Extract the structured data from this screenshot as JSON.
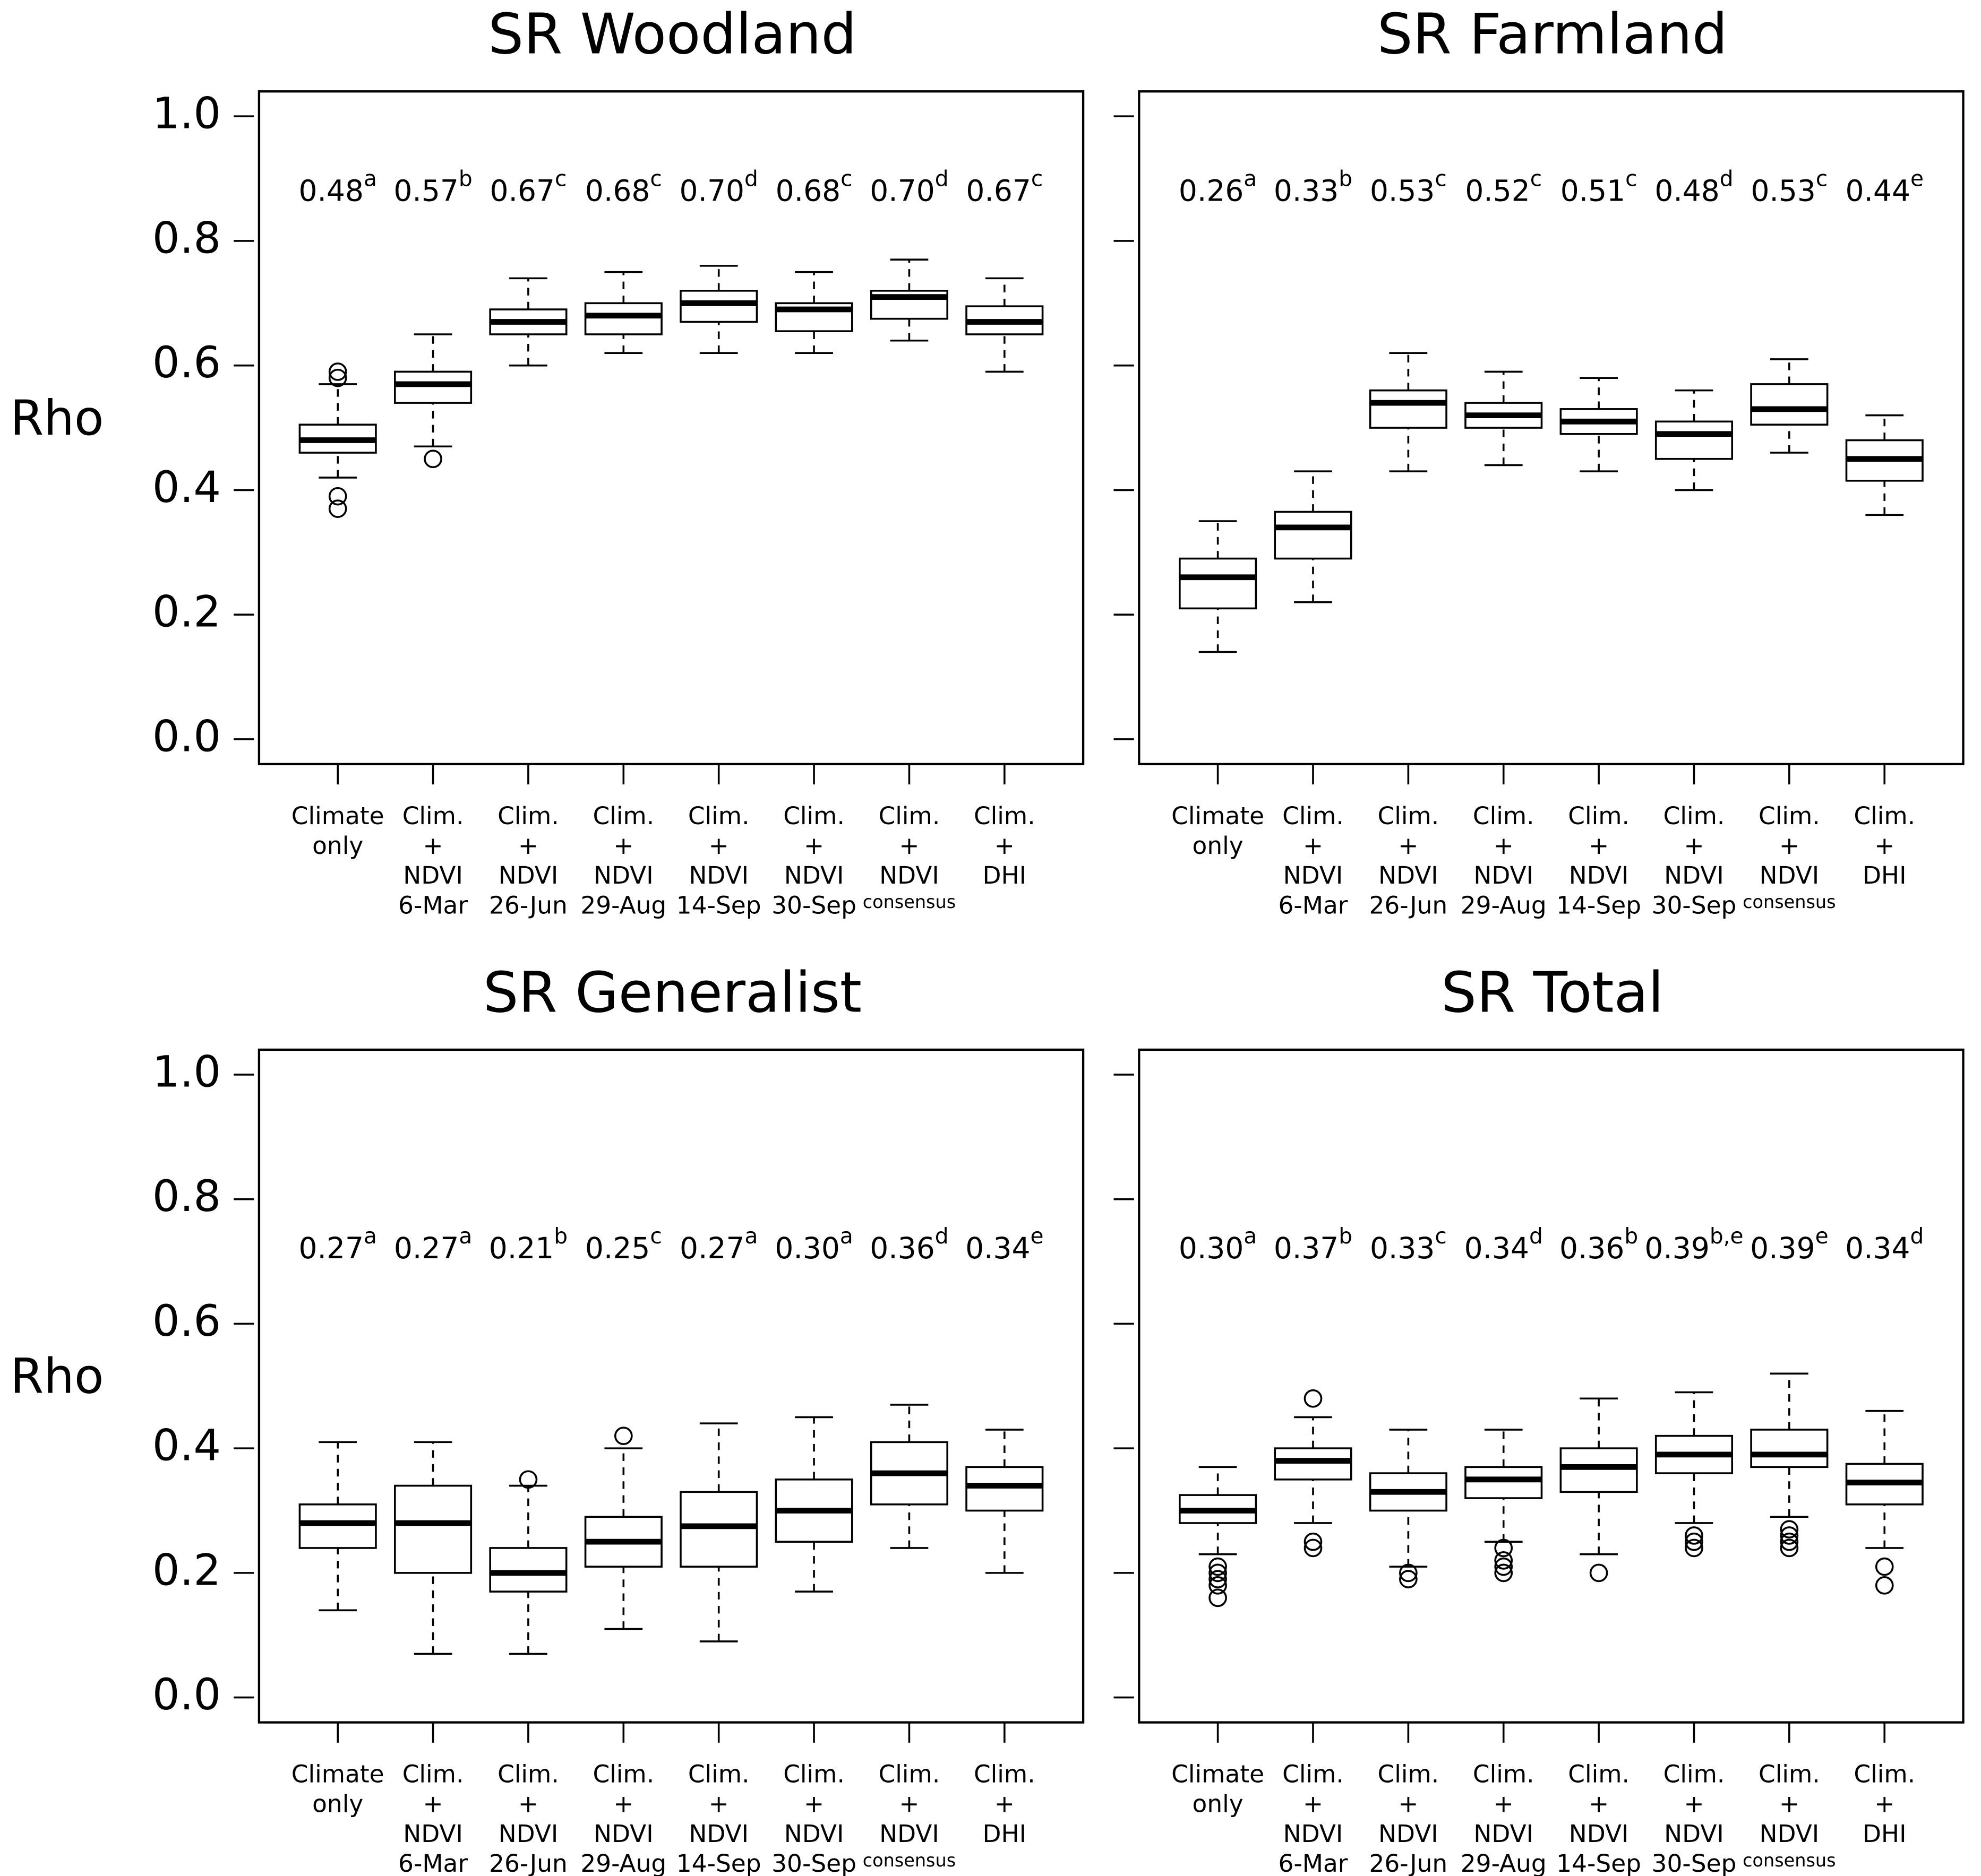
{
  "chart_data": [
    {
      "type": "box",
      "title": "SR Woodland",
      "ylabel": "Rho",
      "ylim": [
        -0.04,
        1.04
      ],
      "yticks": [
        {
          "value": 0,
          "label": "0.0"
        },
        0.2,
        0.4,
        0.6,
        0.8,
        {
          "value": 1,
          "label": "1.0"
        }
      ],
      "show_ytick_labels": true,
      "categories": [
        [
          "Climate",
          "only"
        ],
        [
          "Clim.",
          "+",
          "NDVI",
          "6-Mar"
        ],
        [
          "Clim.",
          "+",
          "NDVI",
          "26-Jun"
        ],
        [
          "Clim.",
          "+",
          "NDVI",
          "29-Aug"
        ],
        [
          "Clim.",
          "+",
          "NDVI",
          "14-Sep"
        ],
        [
          "Clim.",
          "+",
          "NDVI",
          "30-Sep"
        ],
        [
          "Clim.",
          "+",
          "NDVI",
          "consensus"
        ],
        [
          "Clim.",
          "+",
          "DHI"
        ]
      ],
      "annotations": [
        {
          "text": "0.48",
          "sup": "a"
        },
        {
          "text": "0.57",
          "sup": "b"
        },
        {
          "text": "0.67",
          "sup": "c"
        },
        {
          "text": "0.68",
          "sup": "c"
        },
        {
          "text": "0.70",
          "sup": "d"
        },
        {
          "text": "0.68",
          "sup": "c"
        },
        {
          "text": "0.70",
          "sup": "d"
        },
        {
          "text": "0.67",
          "sup": "c"
        }
      ],
      "boxes": [
        {
          "min": 0.42,
          "q1": 0.46,
          "median": 0.48,
          "q3": 0.505,
          "max": 0.57,
          "outliers": [
            0.59,
            0.58,
            0.39,
            0.37
          ]
        },
        {
          "min": 0.47,
          "q1": 0.54,
          "median": 0.57,
          "q3": 0.59,
          "max": 0.65,
          "outliers": [
            0.45
          ]
        },
        {
          "min": 0.6,
          "q1": 0.65,
          "median": 0.67,
          "q3": 0.69,
          "max": 0.74,
          "outliers": []
        },
        {
          "min": 0.62,
          "q1": 0.65,
          "median": 0.68,
          "q3": 0.7,
          "max": 0.75,
          "outliers": []
        },
        {
          "min": 0.62,
          "q1": 0.67,
          "median": 0.7,
          "q3": 0.72,
          "max": 0.76,
          "outliers": []
        },
        {
          "min": 0.62,
          "q1": 0.655,
          "median": 0.69,
          "q3": 0.7,
          "max": 0.75,
          "outliers": []
        },
        {
          "min": 0.64,
          "q1": 0.675,
          "median": 0.71,
          "q3": 0.72,
          "max": 0.77,
          "outliers": []
        },
        {
          "min": 0.59,
          "q1": 0.65,
          "median": 0.67,
          "q3": 0.695,
          "max": 0.74,
          "outliers": []
        }
      ]
    },
    {
      "type": "box",
      "title": "SR Farmland",
      "ylim": [
        -0.04,
        1.04
      ],
      "yticks": [
        0,
        0.2,
        0.4,
        0.6,
        0.8,
        1
      ],
      "show_ytick_labels": false,
      "categories": [
        [
          "Climate",
          "only"
        ],
        [
          "Clim.",
          "+",
          "NDVI",
          "6-Mar"
        ],
        [
          "Clim.",
          "+",
          "NDVI",
          "26-Jun"
        ],
        [
          "Clim.",
          "+",
          "NDVI",
          "29-Aug"
        ],
        [
          "Clim.",
          "+",
          "NDVI",
          "14-Sep"
        ],
        [
          "Clim.",
          "+",
          "NDVI",
          "30-Sep"
        ],
        [
          "Clim.",
          "+",
          "NDVI",
          "consensus"
        ],
        [
          "Clim.",
          "+",
          "DHI"
        ]
      ],
      "annotations": [
        {
          "text": "0.26",
          "sup": "a"
        },
        {
          "text": "0.33",
          "sup": "b"
        },
        {
          "text": "0.53",
          "sup": "c"
        },
        {
          "text": "0.52",
          "sup": "c"
        },
        {
          "text": "0.51",
          "sup": "c"
        },
        {
          "text": "0.48",
          "sup": "d"
        },
        {
          "text": "0.53",
          "sup": "c"
        },
        {
          "text": "0.44",
          "sup": "e"
        }
      ],
      "boxes": [
        {
          "min": 0.14,
          "q1": 0.21,
          "median": 0.26,
          "q3": 0.29,
          "max": 0.35,
          "outliers": []
        },
        {
          "min": 0.22,
          "q1": 0.29,
          "median": 0.34,
          "q3": 0.365,
          "max": 0.43,
          "outliers": []
        },
        {
          "min": 0.43,
          "q1": 0.5,
          "median": 0.54,
          "q3": 0.56,
          "max": 0.62,
          "outliers": []
        },
        {
          "min": 0.44,
          "q1": 0.5,
          "median": 0.52,
          "q3": 0.54,
          "max": 0.59,
          "outliers": []
        },
        {
          "min": 0.43,
          "q1": 0.49,
          "median": 0.51,
          "q3": 0.53,
          "max": 0.58,
          "outliers": []
        },
        {
          "min": 0.4,
          "q1": 0.45,
          "median": 0.49,
          "q3": 0.51,
          "max": 0.56,
          "outliers": []
        },
        {
          "min": 0.46,
          "q1": 0.505,
          "median": 0.53,
          "q3": 0.57,
          "max": 0.61,
          "outliers": []
        },
        {
          "min": 0.36,
          "q1": 0.415,
          "median": 0.45,
          "q3": 0.48,
          "max": 0.52,
          "outliers": []
        }
      ]
    },
    {
      "type": "box",
      "title": "SR Generalist",
      "ylabel": "Rho",
      "ylim": [
        -0.04,
        1.04
      ],
      "yticks": [
        {
          "value": 0,
          "label": "0.0"
        },
        0.2,
        0.4,
        0.6,
        0.8,
        {
          "value": 1,
          "label": "1.0"
        }
      ],
      "show_ytick_labels": true,
      "categories": [
        [
          "Climate",
          "only"
        ],
        [
          "Clim.",
          "+",
          "NDVI",
          "6-Mar"
        ],
        [
          "Clim.",
          "+",
          "NDVI",
          "26-Jun"
        ],
        [
          "Clim.",
          "+",
          "NDVI",
          "29-Aug"
        ],
        [
          "Clim.",
          "+",
          "NDVI",
          "14-Sep"
        ],
        [
          "Clim.",
          "+",
          "NDVI",
          "30-Sep"
        ],
        [
          "Clim.",
          "+",
          "NDVI",
          "consensus"
        ],
        [
          "Clim.",
          "+",
          "DHI"
        ]
      ],
      "annotations": [
        {
          "text": "0.27",
          "sup": "a"
        },
        {
          "text": "0.27",
          "sup": "a"
        },
        {
          "text": "0.21",
          "sup": "b"
        },
        {
          "text": "0.25",
          "sup": "c"
        },
        {
          "text": "0.27",
          "sup": "a"
        },
        {
          "text": "0.30",
          "sup": "a"
        },
        {
          "text": "0.36",
          "sup": "d"
        },
        {
          "text": "0.34",
          "sup": "e"
        }
      ],
      "boxes": [
        {
          "min": 0.14,
          "q1": 0.24,
          "median": 0.28,
          "q3": 0.31,
          "max": 0.41,
          "outliers": []
        },
        {
          "min": 0.07,
          "q1": 0.2,
          "median": 0.28,
          "q3": 0.34,
          "max": 0.41,
          "outliers": []
        },
        {
          "min": 0.07,
          "q1": 0.17,
          "median": 0.2,
          "q3": 0.24,
          "max": 0.34,
          "outliers": [
            0.35
          ]
        },
        {
          "min": 0.11,
          "q1": 0.21,
          "median": 0.25,
          "q3": 0.29,
          "max": 0.4,
          "outliers": [
            0.42
          ]
        },
        {
          "min": 0.09,
          "q1": 0.21,
          "median": 0.275,
          "q3": 0.33,
          "max": 0.44,
          "outliers": []
        },
        {
          "min": 0.17,
          "q1": 0.25,
          "median": 0.3,
          "q3": 0.35,
          "max": 0.45,
          "outliers": []
        },
        {
          "min": 0.24,
          "q1": 0.31,
          "median": 0.36,
          "q3": 0.41,
          "max": 0.47,
          "outliers": []
        },
        {
          "min": 0.2,
          "q1": 0.3,
          "median": 0.34,
          "q3": 0.37,
          "max": 0.43,
          "outliers": []
        }
      ]
    },
    {
      "type": "box",
      "title": "SR Total",
      "ylim": [
        -0.04,
        1.04
      ],
      "yticks": [
        0,
        0.2,
        0.4,
        0.6,
        0.8,
        1
      ],
      "show_ytick_labels": false,
      "categories": [
        [
          "Climate",
          "only"
        ],
        [
          "Clim.",
          "+",
          "NDVI",
          "6-Mar"
        ],
        [
          "Clim.",
          "+",
          "NDVI",
          "26-Jun"
        ],
        [
          "Clim.",
          "+",
          "NDVI",
          "29-Aug"
        ],
        [
          "Clim.",
          "+",
          "NDVI",
          "14-Sep"
        ],
        [
          "Clim.",
          "+",
          "NDVI",
          "30-Sep"
        ],
        [
          "Clim.",
          "+",
          "NDVI",
          "consensus"
        ],
        [
          "Clim.",
          "+",
          "DHI"
        ]
      ],
      "annotations": [
        {
          "text": "0.30",
          "sup": "a"
        },
        {
          "text": "0.37",
          "sup": "b"
        },
        {
          "text": "0.33",
          "sup": "c"
        },
        {
          "text": "0.34",
          "sup": "d"
        },
        {
          "text": "0.36",
          "sup": "b"
        },
        {
          "text": "0.39",
          "sup": "b,e"
        },
        {
          "text": "0.39",
          "sup": "e"
        },
        {
          "text": "0.34",
          "sup": "d"
        }
      ],
      "boxes": [
        {
          "min": 0.23,
          "q1": 0.28,
          "median": 0.3,
          "q3": 0.325,
          "max": 0.37,
          "outliers": [
            0.21,
            0.2,
            0.19,
            0.18,
            0.16
          ]
        },
        {
          "min": 0.28,
          "q1": 0.35,
          "median": 0.38,
          "q3": 0.4,
          "max": 0.45,
          "outliers": [
            0.48,
            0.25,
            0.24
          ]
        },
        {
          "min": 0.21,
          "q1": 0.3,
          "median": 0.33,
          "q3": 0.36,
          "max": 0.43,
          "outliers": [
            0.2,
            0.19
          ]
        },
        {
          "min": 0.25,
          "q1": 0.32,
          "median": 0.35,
          "q3": 0.37,
          "max": 0.43,
          "outliers": [
            0.24,
            0.22,
            0.21,
            0.2
          ]
        },
        {
          "min": 0.23,
          "q1": 0.33,
          "median": 0.37,
          "q3": 0.4,
          "max": 0.48,
          "outliers": [
            0.2
          ]
        },
        {
          "min": 0.28,
          "q1": 0.36,
          "median": 0.39,
          "q3": 0.42,
          "max": 0.49,
          "outliers": [
            0.26,
            0.25,
            0.24
          ]
        },
        {
          "min": 0.29,
          "q1": 0.37,
          "median": 0.39,
          "q3": 0.43,
          "max": 0.52,
          "outliers": [
            0.27,
            0.26,
            0.25,
            0.24
          ]
        },
        {
          "min": 0.24,
          "q1": 0.31,
          "median": 0.345,
          "q3": 0.375,
          "max": 0.46,
          "outliers": [
            0.21,
            0.18
          ]
        }
      ]
    }
  ]
}
